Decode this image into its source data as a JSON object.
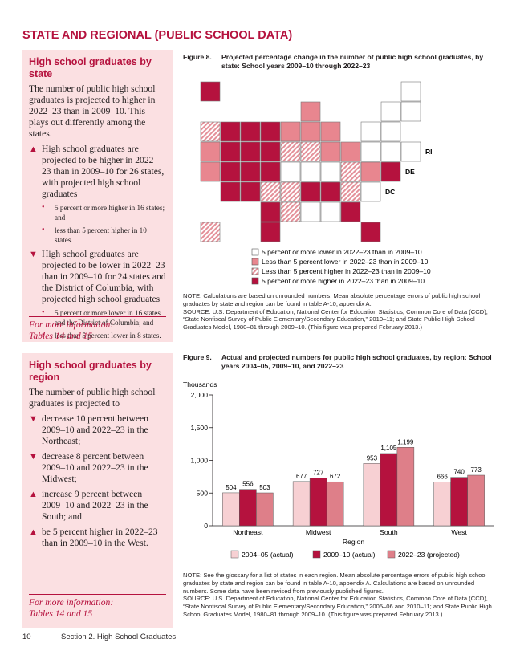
{
  "header": {
    "title": "STATE AND REGIONAL (PUBLIC SCHOOL DATA)"
  },
  "sidebar1": {
    "title": "High school graduates by state",
    "intro": "The number of public high school graduates is projected to higher in 2022–23 than in 2009–10. This plays out differently among the states.",
    "items": [
      {
        "marker": "▲",
        "text": "High school graduates are projected to be higher in 2022–23 than in 2009–10 for 26 states, with projected high school graduates",
        "subitems": [
          {
            "marker": "•",
            "text": "5 percent or more higher in 16 states; and"
          },
          {
            "marker": "•",
            "text": "less than 5 percent higher in 10 states."
          }
        ]
      },
      {
        "marker": "▼",
        "text": "High school graduates are projected to be lower in 2022–23 than in 2009–10 for 24 states and the District of Columbia, with projected high school graduates",
        "subitems": [
          {
            "marker": "•",
            "text": "5 percent or more lower in 16 states and the District of Columbia; and"
          },
          {
            "marker": "•",
            "text": "less than 5 percent lower in 8 states."
          }
        ]
      }
    ],
    "more_info": [
      "For more information:",
      "Tables 14 and 15"
    ]
  },
  "sidebar2": {
    "title": "High school graduates by region",
    "intro": "The number of public high school graduates is projected to",
    "items": [
      {
        "marker": "▼",
        "text": "decrease 10 percent between 2009–10 and 2022–23 in the Northeast;"
      },
      {
        "marker": "▼",
        "text": "decrease 8 percent between 2009–10 and 2022–23 in the Midwest;"
      },
      {
        "marker": "▲",
        "text": "increase 9 percent between 2009–10 and 2022–23 in the South; and"
      },
      {
        "marker": "▲",
        "text": "be 5 percent higher in 2022–23 than in 2009–10 in the West."
      }
    ],
    "more_info": [
      "For more information:",
      "Tables 14 and 15"
    ]
  },
  "figure8": {
    "label": "Figure 8.",
    "title": "Projected percentage change in the number of public high school graduates, by state: School years 2009–10 through 2022–23",
    "map_labels": [
      "RI",
      "DE",
      "DC"
    ],
    "legend": [
      "5 percent or more lower in 2022–23 than in 2009–10",
      "Less than 5 percent lower in 2022–23 than in 2009–10",
      "Less than 5 percent higher in 2022–23 than in 2009–10",
      "5 percent or more higher in 2022–23 than in 2009–10"
    ],
    "note": "NOTE: Calculations are based on unrounded numbers. Mean absolute percentage errors of public high school graduates by state and region can be found in table A-10, appendix A.",
    "source": "SOURCE: U.S. Department of Education, National Center for Education Statistics, Common Core of Data (CCD), “State Nonfiscal Survey of Public Elementary/Secondary Education,” 2010–11; and State Public High School Graduates Model, 1980–81 through 2009–10. (This figure was prepared February 2013.)"
  },
  "chart_data": {
    "type": "bar",
    "figure_label": "Figure 9.",
    "title": "Actual and projected numbers for public high school graduates, by region: School years 2004–05, 2009–10, and 2022–23",
    "y_label": "Thousands",
    "x_label": "Region",
    "categories": [
      "Northeast",
      "Midwest",
      "South",
      "West"
    ],
    "series": [
      {
        "name": "2004–05 (actual)",
        "color": "#f7d0d3",
        "values": [
          504,
          677,
          953,
          666
        ],
        "value_labels": [
          "504",
          "677",
          "953",
          "666"
        ]
      },
      {
        "name": "2009–10 (actual)",
        "color": "#b5123e",
        "values": [
          556,
          727,
          1105,
          740
        ],
        "value_labels": [
          "556",
          "727",
          "1,105",
          "740"
        ]
      },
      {
        "name": "2022–23 (projected)",
        "color": "#de7f89",
        "values": [
          503,
          672,
          1199,
          773
        ],
        "value_labels": [
          "503",
          "672",
          "1,199",
          "773"
        ]
      }
    ],
    "ylim": [
      0,
      2000
    ],
    "yticks": [
      0,
      500,
      {
        "value": 1000,
        "label": "1,000"
      },
      {
        "value": 1500,
        "label": "1,500"
      },
      {
        "value": 2000,
        "label": "2,000"
      }
    ],
    "grid": false
  },
  "figure9": {
    "note": "NOTE: See the glossary for a list of states in each region. Mean absolute percentage errors of public high school graduates by state and region can be found in table A-10, appendix A. Calculations are based on unrounded numbers. Some data have been revised from previously published figures.",
    "source": "SOURCE: U.S. Department of Education, National Center for Education Statistics, Common Core of Data (CCD), “State Nonfiscal Survey of Public Elementary/Secondary Education,” 2005–06 and 2010–11; and State Public High School Graduates Model, 1980–81 through 2009–10. (This figure was prepared February 2013.)"
  },
  "footer": {
    "page": "10",
    "section": "Section 2. High School Graduates"
  }
}
